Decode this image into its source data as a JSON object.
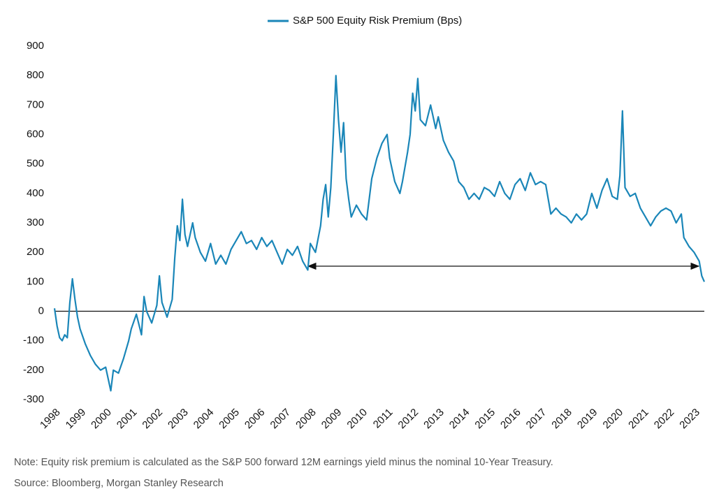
{
  "chart_data": {
    "type": "line",
    "x": [
      1998.0,
      1998.1,
      1998.2,
      1998.3,
      1998.4,
      1998.5,
      1998.6,
      1998.7,
      1998.8,
      1998.9,
      1999.0,
      1999.2,
      1999.4,
      1999.6,
      1999.8,
      2000.0,
      2000.1,
      2000.2,
      2000.3,
      2000.5,
      2000.7,
      2000.9,
      2001.0,
      2001.2,
      2001.4,
      2001.5,
      2001.6,
      2001.8,
      2002.0,
      2002.1,
      2002.2,
      2002.4,
      2002.6,
      2002.7,
      2002.8,
      2002.9,
      2003.0,
      2003.1,
      2003.2,
      2003.4,
      2003.5,
      2003.7,
      2003.9,
      2004.1,
      2004.3,
      2004.5,
      2004.7,
      2004.9,
      2005.1,
      2005.3,
      2005.5,
      2005.7,
      2005.9,
      2006.1,
      2006.3,
      2006.5,
      2006.7,
      2006.9,
      2007.1,
      2007.3,
      2007.5,
      2007.7,
      2007.9,
      2008.0,
      2008.2,
      2008.4,
      2008.5,
      2008.6,
      2008.7,
      2008.8,
      2008.9,
      2009.0,
      2009.1,
      2009.2,
      2009.3,
      2009.4,
      2009.5,
      2009.6,
      2009.8,
      2010.0,
      2010.2,
      2010.4,
      2010.6,
      2010.8,
      2011.0,
      2011.1,
      2011.3,
      2011.5,
      2011.6,
      2011.8,
      2011.9,
      2012.0,
      2012.1,
      2012.2,
      2012.3,
      2012.5,
      2012.7,
      2012.9,
      2013.0,
      2013.2,
      2013.4,
      2013.6,
      2013.8,
      2014.0,
      2014.2,
      2014.4,
      2014.6,
      2014.8,
      2015.0,
      2015.2,
      2015.4,
      2015.6,
      2015.8,
      2016.0,
      2016.2,
      2016.4,
      2016.6,
      2016.8,
      2017.0,
      2017.2,
      2017.4,
      2017.6,
      2017.8,
      2018.0,
      2018.2,
      2018.4,
      2018.6,
      2018.8,
      2019.0,
      2019.2,
      2019.4,
      2019.6,
      2019.8,
      2020.0,
      2020.1,
      2020.2,
      2020.3,
      2020.5,
      2020.7,
      2020.9,
      2021.1,
      2021.3,
      2021.5,
      2021.7,
      2021.9,
      2022.1,
      2022.3,
      2022.5,
      2022.6,
      2022.8,
      2023.0,
      2023.2,
      2023.3,
      2023.4
    ],
    "series": [
      {
        "name": "S&P 500 Equity Risk Premium (Bps)",
        "color": "#1a86b8",
        "values": [
          10,
          -50,
          -90,
          -100,
          -80,
          -90,
          30,
          110,
          40,
          -20,
          -60,
          -110,
          -150,
          -180,
          -200,
          -190,
          -230,
          -270,
          -200,
          -210,
          -160,
          -100,
          -60,
          -10,
          -80,
          50,
          0,
          -40,
          20,
          120,
          30,
          -20,
          40,
          180,
          290,
          240,
          380,
          260,
          220,
          300,
          250,
          200,
          170,
          230,
          160,
          190,
          160,
          210,
          240,
          270,
          230,
          240,
          210,
          250,
          220,
          240,
          200,
          160,
          210,
          190,
          220,
          170,
          140,
          230,
          200,
          290,
          380,
          430,
          320,
          420,
          600,
          800,
          650,
          540,
          640,
          450,
          380,
          320,
          360,
          330,
          310,
          450,
          520,
          570,
          600,
          520,
          440,
          400,
          440,
          540,
          600,
          740,
          680,
          790,
          650,
          630,
          700,
          620,
          660,
          580,
          540,
          510,
          440,
          420,
          380,
          400,
          380,
          420,
          410,
          390,
          440,
          400,
          380,
          430,
          450,
          410,
          470,
          430,
          440,
          430,
          330,
          350,
          330,
          320,
          300,
          330,
          310,
          330,
          400,
          350,
          410,
          450,
          390,
          380,
          460,
          680,
          420,
          390,
          400,
          350,
          320,
          290,
          320,
          340,
          350,
          340,
          300,
          330,
          250,
          220,
          200,
          170,
          120,
          100
        ]
      }
    ],
    "xlim": [
      1998,
      2023.4
    ],
    "xticks": [
      1998,
      1999,
      2000,
      2001,
      2002,
      2003,
      2004,
      2005,
      2006,
      2007,
      2008,
      2009,
      2010,
      2011,
      2012,
      2013,
      2014,
      2015,
      2016,
      2017,
      2018,
      2019,
      2020,
      2021,
      2022,
      2023
    ],
    "ylim": [
      -300,
      900
    ],
    "yticks": [
      -300,
      -200,
      -100,
      0,
      100,
      200,
      300,
      400,
      500,
      600,
      700,
      800,
      900
    ],
    "grid": false,
    "note": "Note: Equity risk premium is calculated as the S&P 500 forward 12M earnings yield minus the nominal 10-Year Treasury.",
    "source": "Source: Bloomberg, Morgan Stanley Research"
  }
}
